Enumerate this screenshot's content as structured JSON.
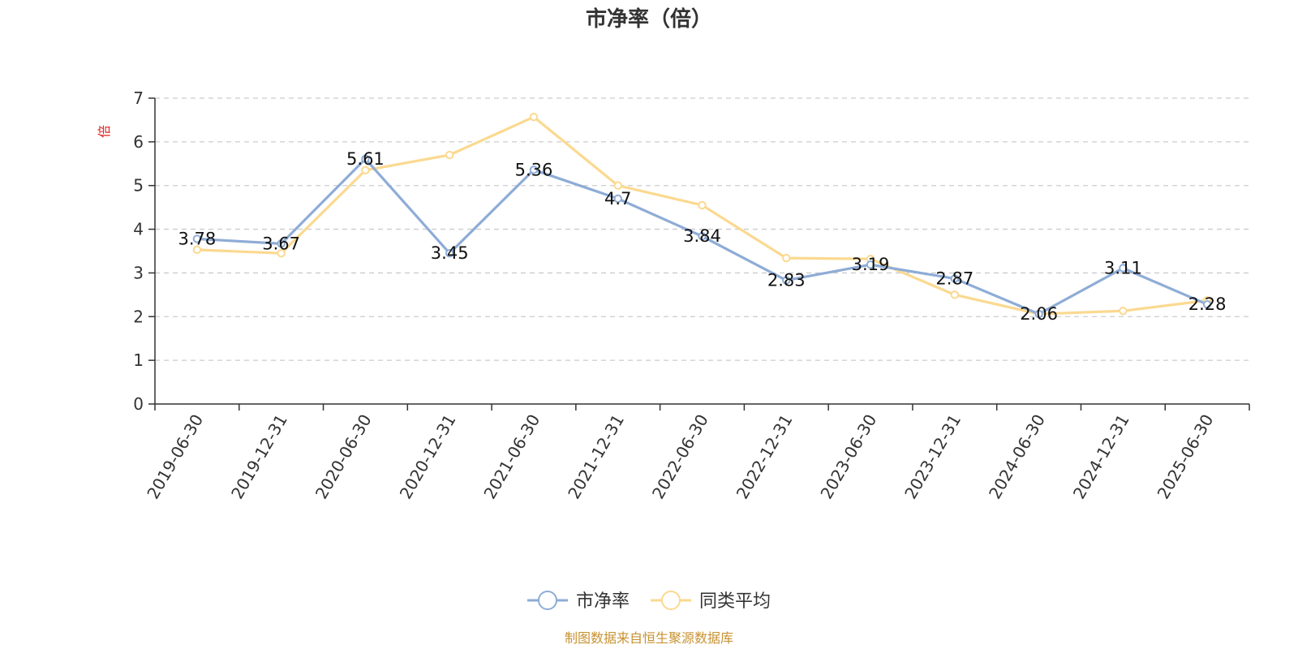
{
  "chart_data": {
    "type": "line",
    "title": "市净率（倍）",
    "ylabel": "倍",
    "ylim": [
      0,
      7
    ],
    "yticks": [
      0,
      1,
      2,
      3,
      4,
      5,
      6,
      7
    ],
    "grid": true,
    "legend_position": "bottom",
    "categories": [
      "2019-06-30",
      "2019-12-31",
      "2020-06-30",
      "2020-12-31",
      "2021-06-30",
      "2021-12-31",
      "2022-06-30",
      "2022-12-31",
      "2023-06-30",
      "2023-12-31",
      "2024-06-30",
      "2024-12-31",
      "2025-06-30"
    ],
    "series": [
      {
        "name": "市净率",
        "color": "#8eacd6",
        "values": [
          3.78,
          3.67,
          5.61,
          3.45,
          5.36,
          4.7,
          3.84,
          2.83,
          3.19,
          2.87,
          2.06,
          3.11,
          2.28
        ],
        "labels": [
          "3.78",
          "3.67",
          "5.61",
          "3.45",
          "5.36",
          "4.7",
          "3.84",
          "2.83",
          "3.19",
          "2.87",
          "2.06",
          "3.11",
          "2.28"
        ]
      },
      {
        "name": "同类平均",
        "color": "#fbd990",
        "values": [
          3.53,
          3.45,
          5.35,
          5.7,
          6.57,
          5.0,
          4.55,
          3.34,
          3.32,
          2.5,
          2.06,
          2.13,
          2.37
        ]
      }
    ]
  },
  "colors": {
    "ylabel": "#e02020",
    "source": "#c79232",
    "grid": "#cccccc",
    "axis": "#333333"
  },
  "footer": {
    "source": "制图数据来自恒生聚源数据库"
  }
}
